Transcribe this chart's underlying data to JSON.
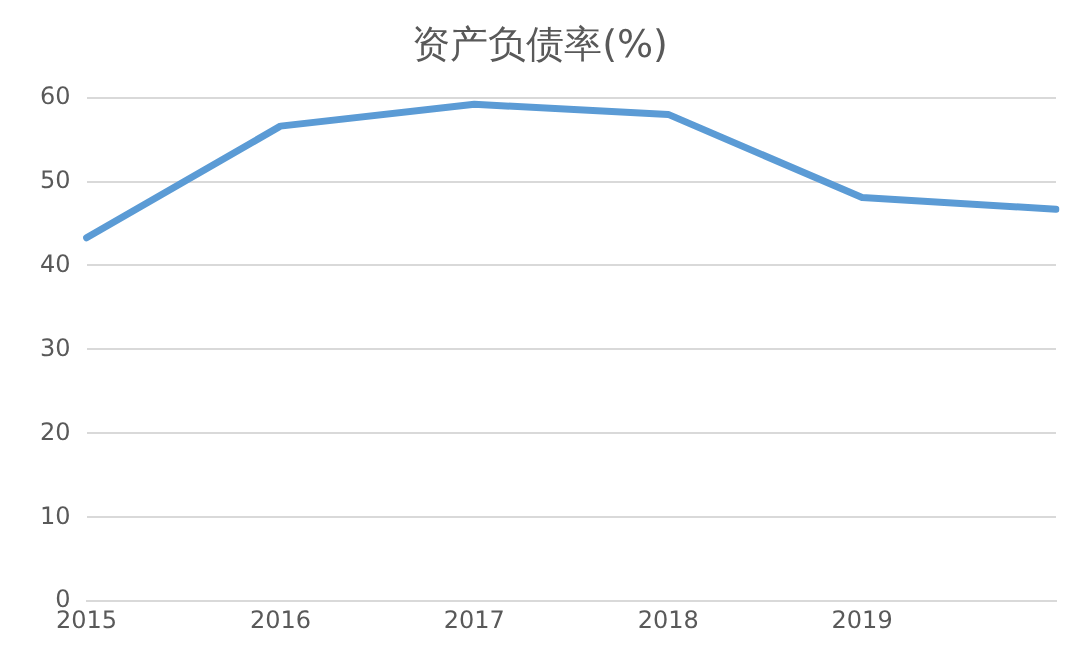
{
  "chart_data": {
    "type": "line",
    "title": "资产负债率(%)",
    "categories": [
      "2015",
      "2016",
      "2017",
      "2018",
      "2019",
      null
    ],
    "series": [
      {
        "color": "#5b9bd5",
        "values": [
          43.3,
          56.6,
          59.2,
          58.0,
          48.1,
          46.7
        ]
      }
    ],
    "ylim": [
      0,
      60
    ],
    "yticks": [
      0,
      10,
      20,
      30,
      40,
      50,
      60
    ],
    "grid": "y",
    "legend": false,
    "marker": "none",
    "line_style": "solid"
  }
}
